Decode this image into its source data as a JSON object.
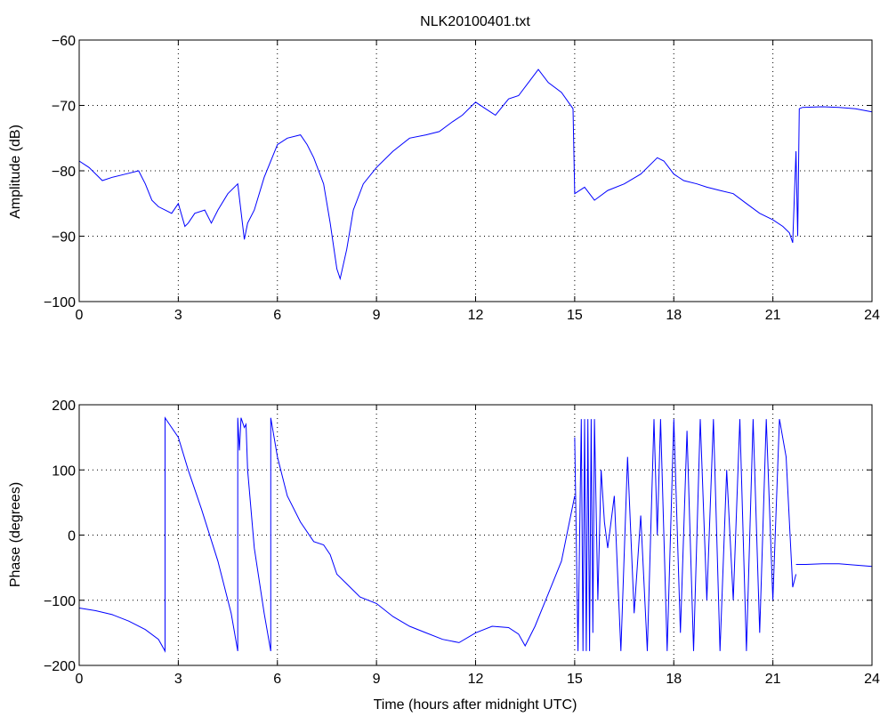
{
  "chart_data": [
    {
      "type": "line",
      "title": "NLK20100401.txt",
      "xlabel": "",
      "ylabel": "Amplitude (dB)",
      "xlim": [
        0,
        24
      ],
      "ylim": [
        -100,
        -60
      ],
      "xticks": [
        0,
        3,
        6,
        9,
        12,
        15,
        18,
        21,
        24
      ],
      "xtick_labels": [
        "0",
        "3",
        "6",
        "9",
        "12",
        "15",
        "18",
        "21",
        "24"
      ],
      "yticks": [
        -100,
        -90,
        -80,
        -70,
        -60
      ],
      "ytick_labels": [
        "−100",
        "−90",
        "−80",
        "−70",
        "−60"
      ],
      "grid": true,
      "color": "#0000ff",
      "series": [
        {
          "x": [
            0,
            0.3,
            0.7,
            1.0,
            1.4,
            1.8,
            2.0,
            2.2,
            2.4,
            2.6,
            2.8,
            3.0,
            3.2,
            3.3,
            3.5,
            3.8,
            4.0,
            4.2,
            4.5,
            4.8,
            5.0,
            5.1,
            5.3,
            5.6,
            6.0,
            6.3,
            6.7,
            6.9,
            7.1,
            7.4,
            7.6,
            7.8,
            7.9,
            8.1,
            8.3,
            8.6,
            9.0,
            9.5,
            10.0,
            10.5,
            10.9,
            11.3,
            11.6,
            12.0,
            12.3,
            12.6,
            13.0,
            13.3,
            13.6,
            13.9,
            14.2,
            14.6,
            14.95,
            15.0,
            15.3,
            15.6,
            16.0,
            16.5,
            17.0,
            17.5,
            17.7,
            18.0,
            18.3,
            18.7,
            19.0,
            19.4,
            19.8,
            20.2,
            20.6,
            21.0,
            21.3,
            21.5,
            21.6,
            21.7,
            21.75,
            21.8,
            21.9,
            22.5,
            23.0,
            23.5,
            24.0
          ],
          "y": [
            -78.5,
            -79.5,
            -81.5,
            -81,
            -80.5,
            -80,
            -82,
            -84.5,
            -85.5,
            -86,
            -86.5,
            -85,
            -88.5,
            -88,
            -86.5,
            -86,
            -88,
            -86,
            -83.5,
            -82,
            -90.5,
            -88,
            -86,
            -81,
            -76,
            -75,
            -74.5,
            -76,
            -78,
            -82,
            -88,
            -95,
            -96.5,
            -92,
            -86,
            -82,
            -79.5,
            -77,
            -75,
            -74.5,
            -74,
            -72.5,
            -71.5,
            -69.5,
            -70.5,
            -71.5,
            -69,
            -68.5,
            -66.5,
            -64.5,
            -66.5,
            -68,
            -70.5,
            -83.5,
            -82.5,
            -84.5,
            -83,
            -82,
            -80.5,
            -78,
            -78.5,
            -80.5,
            -81.5,
            -82,
            -82.5,
            -83,
            -83.5,
            -85,
            -86.5,
            -87.5,
            -88.5,
            -89.5,
            -91,
            -77,
            -90,
            -70.5,
            -70.3,
            -70.2,
            -70.3,
            -70.5,
            -71
          ]
        }
      ]
    },
    {
      "type": "line",
      "title": "",
      "xlabel": "Time (hours after midnight UTC)",
      "ylabel": "Phase (degrees)",
      "xlim": [
        0,
        24
      ],
      "ylim": [
        -200,
        200
      ],
      "xticks": [
        0,
        3,
        6,
        9,
        12,
        15,
        18,
        21,
        24
      ],
      "xtick_labels": [
        "0",
        "3",
        "6",
        "9",
        "12",
        "15",
        "18",
        "21",
        "24"
      ],
      "yticks": [
        -200,
        -100,
        0,
        100,
        200
      ],
      "ytick_labels": [
        "−200",
        "−100",
        "0",
        "100",
        "200"
      ],
      "grid": true,
      "color": "#0000ff",
      "series": [
        {
          "x": [
            0,
            0.5,
            1.0,
            1.5,
            2.0,
            2.4,
            2.6,
            2.6,
            2.8,
            3.0,
            3.3,
            3.7,
            4.2,
            4.6,
            4.8,
            4.8,
            4.85,
            4.9,
            5.0,
            5.05,
            5.1,
            5.3,
            5.6,
            5.8,
            5.8,
            6.0,
            6.3,
            6.7,
            7.1,
            7.4,
            7.6,
            7.8,
            8.1,
            8.5,
            9.0,
            9.5,
            10.0,
            10.5,
            11.0,
            11.5,
            12.0,
            12.5,
            13.0,
            13.3,
            13.5,
            13.8,
            14.2,
            14.6,
            15.0
          ],
          "y": [
            -112,
            -116,
            -122,
            -132,
            -145,
            -160,
            -178,
            180,
            165,
            150,
            100,
            40,
            -40,
            -120,
            -178,
            180,
            130,
            180,
            165,
            170,
            100,
            -20,
            -120,
            -178,
            180,
            120,
            60,
            20,
            -10,
            -15,
            -30,
            -60,
            -75,
            -95,
            -105,
            -125,
            -140,
            -150,
            -160,
            -165,
            -150,
            -140,
            -142,
            -152,
            -170,
            -140,
            -90,
            -40,
            60
          ]
        },
        {
          "x": [
            15.0,
            15.1,
            15.2,
            15.25,
            15.3,
            15.35,
            15.4,
            15.45,
            15.5,
            15.55,
            15.6,
            15.7,
            15.8,
            15.9,
            16.0,
            16.2,
            16.4,
            16.6,
            16.8,
            17.0,
            17.2,
            17.4,
            17.5,
            17.6,
            17.8,
            18.0,
            18.2,
            18.4,
            18.6,
            18.8,
            19.0,
            19.2,
            19.4,
            19.6,
            19.8,
            20.0,
            20.2,
            20.4,
            20.6,
            20.8,
            21.0,
            21.2,
            21.4,
            21.6,
            21.7
          ],
          "y": [
            150,
            -178,
            178,
            -178,
            178,
            -178,
            178,
            -178,
            178,
            -150,
            178,
            -100,
            100,
            20,
            -20,
            60,
            -178,
            120,
            -120,
            30,
            -178,
            178,
            0,
            178,
            -178,
            178,
            -150,
            160,
            -178,
            178,
            -100,
            178,
            -178,
            100,
            -100,
            178,
            -178,
            178,
            -150,
            178,
            -100,
            178,
            120,
            -80,
            -60
          ]
        },
        {
          "x": [
            21.7,
            22.0,
            22.5,
            23.0,
            23.5,
            24.0
          ],
          "y": [
            -45,
            -45,
            -44,
            -44,
            -46,
            -48
          ]
        }
      ]
    }
  ]
}
